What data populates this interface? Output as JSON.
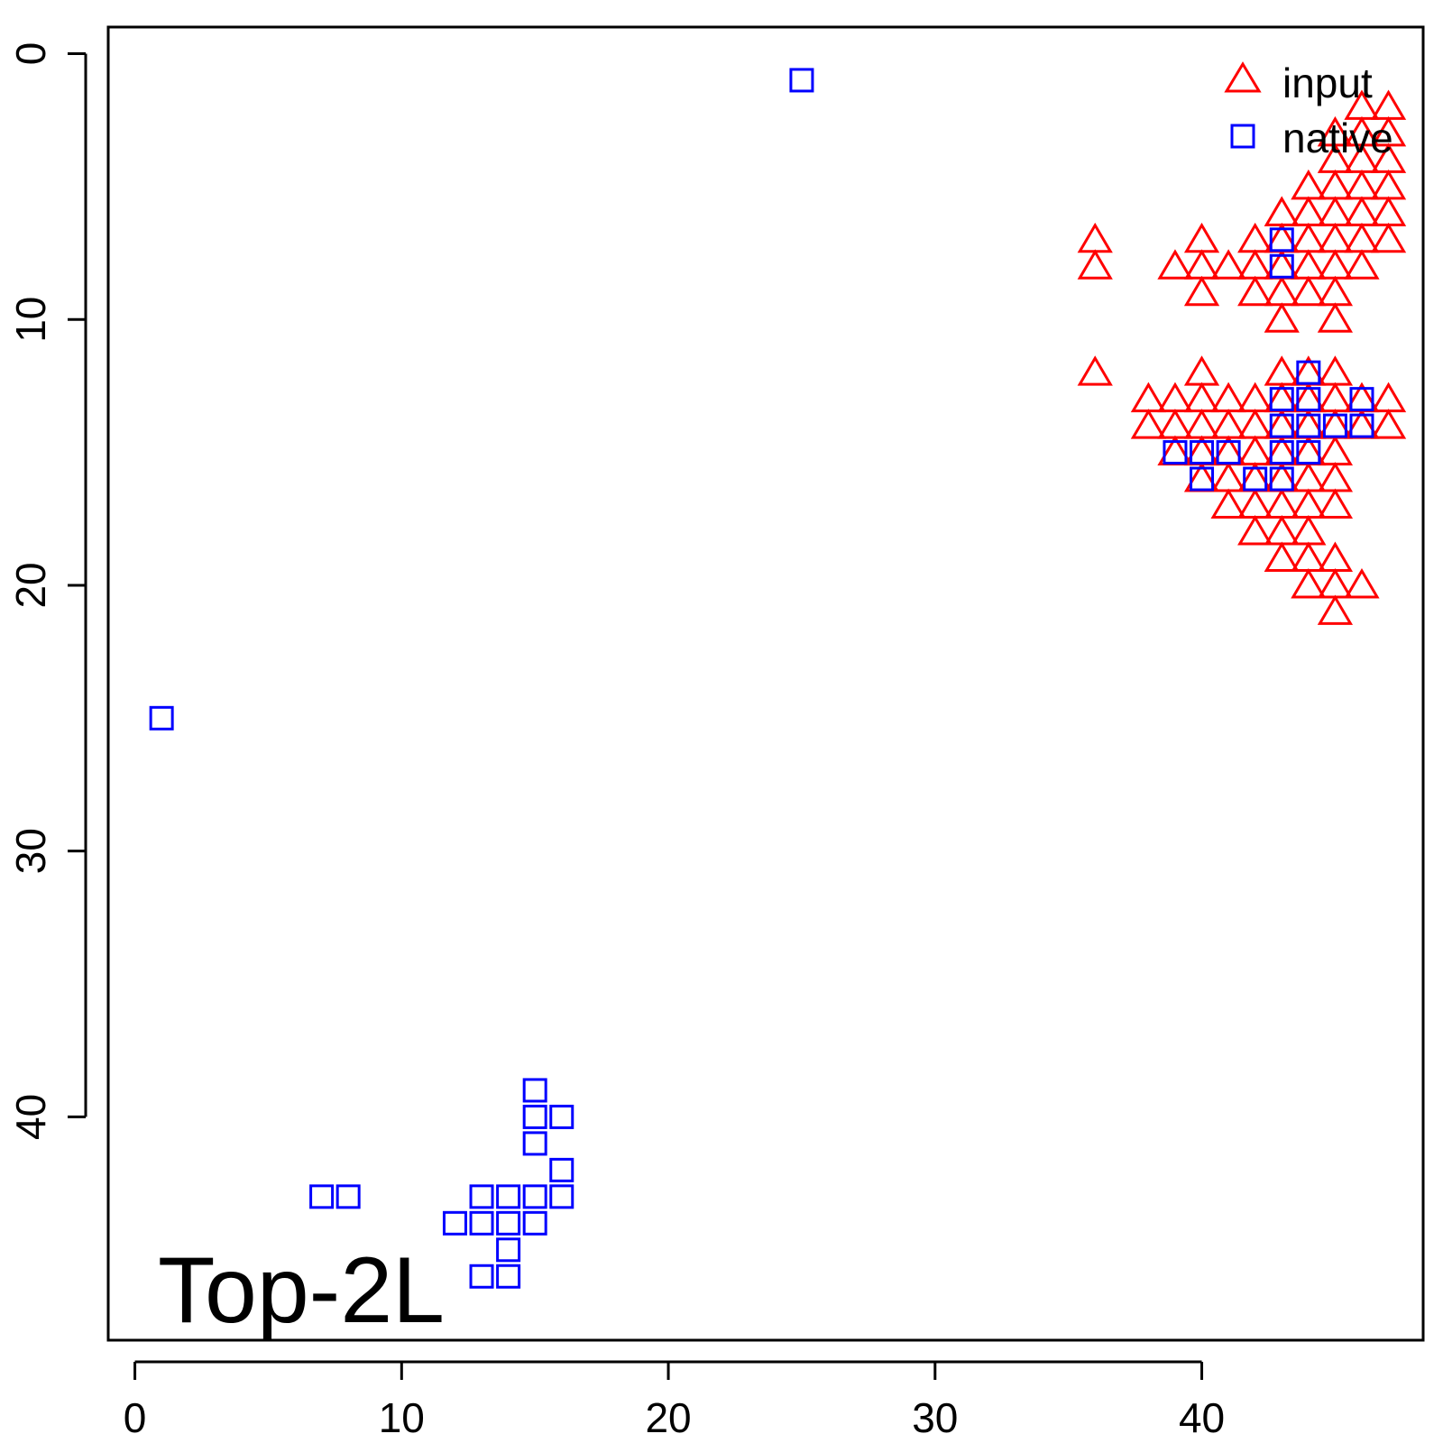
{
  "chart_data": {
    "type": "scatter",
    "title": "",
    "xlabel": "",
    "ylabel": "",
    "xlim": [
      -1,
      48.3
    ],
    "ylim": [
      48.4,
      -1
    ],
    "y_axis_reversed": true,
    "x_ticks": [
      0,
      10,
      20,
      30,
      40
    ],
    "y_ticks": [
      0,
      10,
      20,
      30,
      40
    ],
    "grid": false,
    "legend_position": "top-right",
    "annotation": "Top-2L",
    "series": [
      {
        "name": "input",
        "marker": "triangle-open",
        "color": "#ff0000",
        "points": [
          [
            46,
            2
          ],
          [
            47,
            2
          ],
          [
            45,
            3
          ],
          [
            46,
            3
          ],
          [
            47,
            3
          ],
          [
            45,
            4
          ],
          [
            46,
            4
          ],
          [
            47,
            4
          ],
          [
            44,
            5
          ],
          [
            45,
            5
          ],
          [
            46,
            5
          ],
          [
            47,
            5
          ],
          [
            43,
            6
          ],
          [
            44,
            6
          ],
          [
            45,
            6
          ],
          [
            46,
            6
          ],
          [
            47,
            6
          ],
          [
            36,
            7
          ],
          [
            40,
            7
          ],
          [
            42,
            7
          ],
          [
            43,
            7
          ],
          [
            44,
            7
          ],
          [
            45,
            7
          ],
          [
            46,
            7
          ],
          [
            47,
            7
          ],
          [
            36,
            8
          ],
          [
            39,
            8
          ],
          [
            40,
            8
          ],
          [
            41,
            8
          ],
          [
            42,
            8
          ],
          [
            43,
            8
          ],
          [
            44,
            8
          ],
          [
            45,
            8
          ],
          [
            46,
            8
          ],
          [
            40,
            9
          ],
          [
            42,
            9
          ],
          [
            43,
            9
          ],
          [
            44,
            9
          ],
          [
            45,
            9
          ],
          [
            43,
            10
          ],
          [
            45,
            10
          ],
          [
            36,
            12
          ],
          [
            40,
            12
          ],
          [
            43,
            12
          ],
          [
            44,
            12
          ],
          [
            45,
            12
          ],
          [
            38,
            13
          ],
          [
            39,
            13
          ],
          [
            40,
            13
          ],
          [
            41,
            13
          ],
          [
            42,
            13
          ],
          [
            43,
            13
          ],
          [
            44,
            13
          ],
          [
            45,
            13
          ],
          [
            46,
            13
          ],
          [
            47,
            13
          ],
          [
            38,
            14
          ],
          [
            39,
            14
          ],
          [
            40,
            14
          ],
          [
            41,
            14
          ],
          [
            42,
            14
          ],
          [
            43,
            14
          ],
          [
            44,
            14
          ],
          [
            45,
            14
          ],
          [
            46,
            14
          ],
          [
            47,
            14
          ],
          [
            39,
            15
          ],
          [
            40,
            15
          ],
          [
            41,
            15
          ],
          [
            42,
            15
          ],
          [
            43,
            15
          ],
          [
            44,
            15
          ],
          [
            45,
            15
          ],
          [
            40,
            16
          ],
          [
            41,
            16
          ],
          [
            42,
            16
          ],
          [
            43,
            16
          ],
          [
            44,
            16
          ],
          [
            45,
            16
          ],
          [
            41,
            17
          ],
          [
            42,
            17
          ],
          [
            43,
            17
          ],
          [
            44,
            17
          ],
          [
            45,
            17
          ],
          [
            42,
            18
          ],
          [
            43,
            18
          ],
          [
            44,
            18
          ],
          [
            43,
            19
          ],
          [
            44,
            19
          ],
          [
            45,
            19
          ],
          [
            44,
            20
          ],
          [
            45,
            20
          ],
          [
            46,
            20
          ],
          [
            45,
            21
          ]
        ]
      },
      {
        "name": "native",
        "marker": "square-open",
        "color": "#0000ff",
        "points": [
          [
            25,
            1
          ],
          [
            1,
            25
          ],
          [
            43,
            7
          ],
          [
            43,
            8
          ],
          [
            44,
            12
          ],
          [
            43,
            13
          ],
          [
            44,
            13
          ],
          [
            46,
            13
          ],
          [
            43,
            14
          ],
          [
            44,
            14
          ],
          [
            45,
            14
          ],
          [
            46,
            14
          ],
          [
            39,
            15
          ],
          [
            40,
            15
          ],
          [
            41,
            15
          ],
          [
            43,
            15
          ],
          [
            44,
            15
          ],
          [
            40,
            16
          ],
          [
            42,
            16
          ],
          [
            43,
            16
          ],
          [
            15,
            39
          ],
          [
            15,
            40
          ],
          [
            16,
            40
          ],
          [
            15,
            41
          ],
          [
            16,
            42
          ],
          [
            7,
            43
          ],
          [
            8,
            43
          ],
          [
            13,
            43
          ],
          [
            14,
            43
          ],
          [
            15,
            43
          ],
          [
            16,
            43
          ],
          [
            12,
            44
          ],
          [
            13,
            44
          ],
          [
            14,
            44
          ],
          [
            15,
            44
          ],
          [
            14,
            45
          ],
          [
            13,
            46
          ],
          [
            14,
            46
          ]
        ]
      }
    ]
  }
}
